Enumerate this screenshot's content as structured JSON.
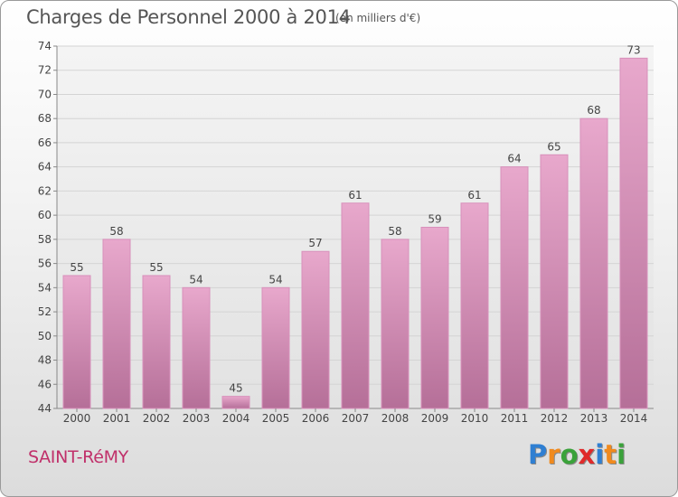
{
  "header": {
    "title": "Charges de Personnel 2000 à 2014",
    "subtitle": "(en milliers d'€)"
  },
  "footer": {
    "place": "SAINT-RéMY",
    "logo": {
      "text": "Proxiti",
      "letters": [
        {
          "ch": "P",
          "color": "#2f7fd2"
        },
        {
          "ch": "r",
          "color": "#f08a1e"
        },
        {
          "ch": "o",
          "color": "#3aa23a"
        },
        {
          "ch": "x",
          "color": "#e02a2a"
        },
        {
          "ch": "i",
          "color": "#2f7fd2"
        },
        {
          "ch": "t",
          "color": "#f08a1e"
        },
        {
          "ch": "i",
          "color": "#3aa23a"
        }
      ]
    }
  },
  "colors": {
    "bar_light": "#e8a8cc",
    "bar_dark": "#b56f98",
    "bar_edge": "#d890bb",
    "grid": "#d4d4d4",
    "axis_text": "#444444"
  },
  "chart_data": {
    "type": "bar",
    "title": "Charges de Personnel 2000 à 2014",
    "subtitle": "(en milliers d'€)",
    "categories": [
      "2000",
      "2001",
      "2002",
      "2003",
      "2004",
      "2005",
      "2006",
      "2007",
      "2008",
      "2009",
      "2010",
      "2011",
      "2012",
      "2013",
      "2014"
    ],
    "values": [
      55,
      58,
      55,
      54,
      45,
      54,
      57,
      61,
      58,
      59,
      61,
      64,
      65,
      68,
      73
    ],
    "ylim": [
      44,
      74
    ],
    "yticks": [
      44,
      46,
      48,
      50,
      52,
      54,
      56,
      58,
      60,
      62,
      64,
      66,
      68,
      70,
      72,
      74
    ],
    "grid": true,
    "data_labels": true
  }
}
